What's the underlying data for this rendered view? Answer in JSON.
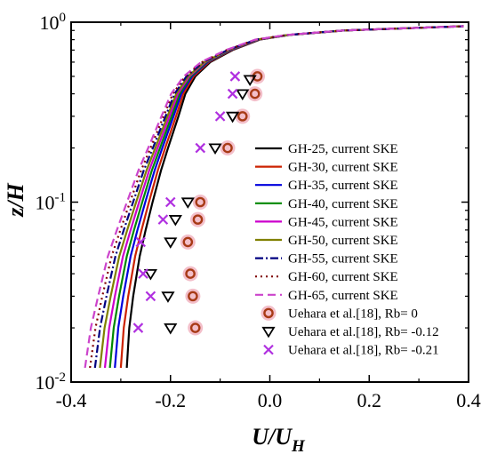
{
  "chart_data": {
    "type": "line",
    "title": "",
    "xlabel": {
      "main": "U/U",
      "sub": "H"
    },
    "ylabel": "z/H",
    "xlim": [
      -0.4,
      0.4
    ],
    "ylim": [
      0.01,
      1
    ],
    "yscale": "log",
    "x_ticks": [
      "-0.4",
      "-0.2",
      "0.0",
      "0.2",
      "0.4"
    ],
    "y_ticks": [
      {
        "base": "10",
        "exp": "-2",
        "value": 0.01
      },
      {
        "base": "10",
        "exp": "-1",
        "value": 0.1
      },
      {
        "base": "10",
        "exp": "0",
        "value": 1
      }
    ],
    "legend_position": "right",
    "series": [
      {
        "name": "GH-25, current SKE",
        "color": "#000000",
        "dash": "solid",
        "x0": -0.288
      },
      {
        "name": "GH-30, current SKE",
        "color": "#cc2200",
        "dash": "solid",
        "x0": -0.3
      },
      {
        "name": "GH-35, current SKE",
        "color": "#0000dd",
        "dash": "solid",
        "x0": -0.312
      },
      {
        "name": "GH-40, current SKE",
        "color": "#008800",
        "dash": "solid",
        "x0": -0.322
      },
      {
        "name": "GH-45, current SKE",
        "color": "#cc00cc",
        "dash": "solid",
        "x0": -0.332
      },
      {
        "name": "GH-50, current SKE",
        "color": "#808000",
        "dash": "solid",
        "x0": -0.342
      },
      {
        "name": "GH-55, current SKE",
        "color": "#000080",
        "dash": "dashdot",
        "x0": -0.352
      },
      {
        "name": "GH-60, current SKE",
        "color": "#800000",
        "dash": "dot",
        "x0": -0.362
      },
      {
        "name": "GH-65, current SKE",
        "color": "#cc44cc",
        "dash": "dash",
        "x0": -0.372
      }
    ],
    "profile_shape": {
      "z": [
        0.012,
        0.02,
        0.03,
        0.05,
        0.07,
        0.1,
        0.15,
        0.2,
        0.3,
        0.4,
        0.5,
        0.6,
        0.7,
        0.8,
        0.85,
        0.9,
        0.95
      ],
      "x_at_reference": [
        -0.288,
        -0.283,
        -0.275,
        -0.262,
        -0.25,
        -0.236,
        -0.219,
        -0.205,
        -0.184,
        -0.17,
        -0.15,
        -0.12,
        -0.075,
        -0.02,
        0.04,
        0.15,
        0.39
      ]
    },
    "scatter_series": [
      {
        "name": "Uehara et al.[18], Rb= 0",
        "marker": "circle",
        "points": [
          [
            -0.025,
            0.5
          ],
          [
            -0.03,
            0.4
          ],
          [
            -0.055,
            0.3
          ],
          [
            -0.085,
            0.2
          ],
          [
            -0.14,
            0.1
          ],
          [
            -0.145,
            0.08
          ],
          [
            -0.165,
            0.06
          ],
          [
            -0.16,
            0.04
          ],
          [
            -0.155,
            0.03
          ],
          [
            -0.15,
            0.02
          ]
        ]
      },
      {
        "name": "Uehara et al.[18], Rb= -0.12",
        "marker": "triangle-down",
        "points": [
          [
            -0.04,
            0.48
          ],
          [
            -0.055,
            0.4
          ],
          [
            -0.075,
            0.3
          ],
          [
            -0.11,
            0.2
          ],
          [
            -0.165,
            0.1
          ],
          [
            -0.19,
            0.08
          ],
          [
            -0.2,
            0.06
          ],
          [
            -0.24,
            0.04
          ],
          [
            -0.205,
            0.03
          ],
          [
            -0.2,
            0.02
          ]
        ]
      },
      {
        "name": "Uehara et al.[18], Rb= -0.21",
        "marker": "x",
        "points": [
          [
            -0.07,
            0.5
          ],
          [
            -0.075,
            0.4
          ],
          [
            -0.1,
            0.3
          ],
          [
            -0.14,
            0.2
          ],
          [
            -0.2,
            0.1
          ],
          [
            -0.215,
            0.08
          ],
          [
            -0.26,
            0.06
          ],
          [
            -0.255,
            0.04
          ],
          [
            -0.24,
            0.03
          ],
          [
            -0.265,
            0.02
          ]
        ]
      }
    ]
  }
}
